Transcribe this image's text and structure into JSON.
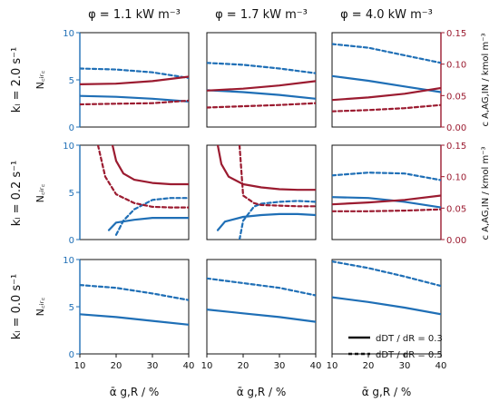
{
  "colors": {
    "blue": "#1f6fb6",
    "red": "#9b1b30",
    "black": "#111111"
  },
  "columns": [
    {
      "label": "φ = 1.1 kW m⁻³"
    },
    {
      "label": "φ = 1.7 kW m⁻³"
    },
    {
      "label": "φ = 4.0 kW m⁻³"
    }
  ],
  "rows": [
    {
      "label": "kₗ = 2.0 s⁻¹"
    },
    {
      "label": "kₗ = 0.2 s⁻¹"
    },
    {
      "label": "kₗ = 0.0 s⁻¹"
    }
  ],
  "y_label_left": "N꜀ᵢᵣ꜀",
  "y_label_right": "c A,AG,IN / kmol m⁻³",
  "x_label": "ᾱ g,R / %",
  "legend": [
    {
      "style": "solid",
      "label": "dDT / dR = 0.3"
    },
    {
      "style": "dashed",
      "label": "dDT / dR = 0.5"
    }
  ],
  "chart_data": {
    "type": "line",
    "grid": false,
    "x_axis": {
      "label": "ᾱ_g,R / %",
      "range": [
        10,
        40
      ],
      "ticks": [
        10,
        20,
        30,
        40
      ]
    },
    "y_axis_left": {
      "label": "N_circ",
      "range": [
        0,
        10
      ],
      "ticks": [
        0,
        5,
        10
      ],
      "color": "#1f6fb6"
    },
    "y_axis_right": {
      "label": "c_A,AG,IN / kmol m⁻³",
      "range": [
        0,
        0.15
      ],
      "ticks": [
        0.0,
        0.05,
        0.1,
        0.15
      ],
      "color": "#9b1b30"
    },
    "legend_placement": "bottom-right panel",
    "panels": [
      {
        "row": 0,
        "col": 0,
        "series": [
          {
            "axis": "left",
            "style": "solid",
            "x": [
              10,
              20,
              30,
              40
            ],
            "y": [
              3.3,
              3.2,
              3.0,
              2.7
            ]
          },
          {
            "axis": "left",
            "style": "dashed",
            "x": [
              10,
              20,
              30,
              40
            ],
            "y": [
              6.2,
              6.1,
              5.8,
              5.2
            ]
          },
          {
            "axis": "right",
            "style": "solid",
            "x": [
              10,
              20,
              30,
              40
            ],
            "y": [
              0.068,
              0.069,
              0.073,
              0.08
            ]
          },
          {
            "axis": "right",
            "style": "dashed",
            "x": [
              10,
              20,
              30,
              40
            ],
            "y": [
              0.036,
              0.037,
              0.038,
              0.042
            ]
          }
        ]
      },
      {
        "row": 0,
        "col": 1,
        "series": [
          {
            "axis": "left",
            "style": "solid",
            "x": [
              10,
              20,
              30,
              40
            ],
            "y": [
              3.9,
              3.7,
              3.4,
              3.0
            ]
          },
          {
            "axis": "left",
            "style": "dashed",
            "x": [
              10,
              20,
              30,
              40
            ],
            "y": [
              6.8,
              6.6,
              6.2,
              5.7
            ]
          },
          {
            "axis": "right",
            "style": "solid",
            "x": [
              10,
              20,
              30,
              40
            ],
            "y": [
              0.058,
              0.061,
              0.066,
              0.073
            ]
          },
          {
            "axis": "right",
            "style": "dashed",
            "x": [
              10,
              20,
              30,
              40
            ],
            "y": [
              0.031,
              0.033,
              0.035,
              0.038
            ]
          }
        ]
      },
      {
        "row": 0,
        "col": 2,
        "series": [
          {
            "axis": "left",
            "style": "solid",
            "x": [
              10,
              20,
              30,
              40
            ],
            "y": [
              5.4,
              4.9,
              4.3,
              3.7
            ]
          },
          {
            "axis": "left",
            "style": "dashed",
            "x": [
              10,
              20,
              30,
              40
            ],
            "y": [
              8.8,
              8.4,
              7.6,
              6.8
            ]
          },
          {
            "axis": "right",
            "style": "solid",
            "x": [
              10,
              20,
              30,
              40
            ],
            "y": [
              0.043,
              0.047,
              0.053,
              0.062
            ]
          },
          {
            "axis": "right",
            "style": "dashed",
            "x": [
              10,
              20,
              30,
              40
            ],
            "y": [
              0.025,
              0.027,
              0.03,
              0.035
            ]
          }
        ]
      },
      {
        "row": 1,
        "col": 0,
        "series": [
          {
            "axis": "left",
            "style": "solid",
            "x": [
              18,
              20,
              25,
              30,
              35,
              40
            ],
            "y": [
              1.0,
              1.8,
              2.1,
              2.3,
              2.3,
              2.3
            ]
          },
          {
            "axis": "left",
            "style": "dashed",
            "x": [
              20,
              22,
              25,
              30,
              35,
              40
            ],
            "y": [
              0.5,
              2.0,
              3.2,
              4.2,
              4.4,
              4.4
            ]
          },
          {
            "axis": "right",
            "style": "solid",
            "x": [
              19,
              20,
              22,
              25,
              30,
              35,
              40
            ],
            "y": [
              0.15,
              0.125,
              0.105,
              0.095,
              0.09,
              0.088,
              0.088
            ]
          },
          {
            "axis": "right",
            "style": "dashed",
            "x": [
              15,
              17,
              20,
              25,
              30,
              35,
              40
            ],
            "y": [
              0.15,
              0.1,
              0.072,
              0.058,
              0.052,
              0.051,
              0.051
            ]
          }
        ]
      },
      {
        "row": 1,
        "col": 1,
        "series": [
          {
            "axis": "left",
            "style": "solid",
            "x": [
              13,
              15,
              20,
              25,
              30,
              35,
              40
            ],
            "y": [
              1.0,
              1.9,
              2.4,
              2.6,
              2.7,
              2.7,
              2.6
            ]
          },
          {
            "axis": "left",
            "style": "dashed",
            "x": [
              19,
              20,
              23,
              25,
              30,
              35,
              40
            ],
            "y": [
              0.0,
              2.0,
              3.5,
              3.8,
              4.0,
              4.1,
              4.0
            ]
          },
          {
            "axis": "right",
            "style": "solid",
            "x": [
              13,
              14,
              16,
              20,
              25,
              30,
              35,
              40
            ],
            "y": [
              0.15,
              0.12,
              0.1,
              0.088,
              0.083,
              0.08,
              0.079,
              0.079
            ]
          },
          {
            "axis": "right",
            "style": "dashed",
            "x": [
              19,
              20,
              23,
              25,
              30,
              35,
              40
            ],
            "y": [
              0.15,
              0.07,
              0.058,
              0.055,
              0.054,
              0.053,
              0.053
            ]
          }
        ]
      },
      {
        "row": 1,
        "col": 2,
        "series": [
          {
            "axis": "left",
            "style": "solid",
            "x": [
              10,
              20,
              30,
              40
            ],
            "y": [
              4.5,
              4.4,
              4.0,
              3.4
            ]
          },
          {
            "axis": "left",
            "style": "dashed",
            "x": [
              10,
              20,
              30,
              40
            ],
            "y": [
              6.8,
              7.1,
              7.0,
              6.3
            ]
          },
          {
            "axis": "right",
            "style": "solid",
            "x": [
              10,
              20,
              30,
              40
            ],
            "y": [
              0.056,
              0.059,
              0.063,
              0.07
            ]
          },
          {
            "axis": "right",
            "style": "dashed",
            "x": [
              10,
              20,
              30,
              40
            ],
            "y": [
              0.045,
              0.045,
              0.046,
              0.048
            ]
          }
        ]
      },
      {
        "row": 2,
        "col": 0,
        "series": [
          {
            "axis": "left",
            "style": "solid",
            "x": [
              10,
              20,
              30,
              40
            ],
            "y": [
              4.2,
              3.9,
              3.5,
              3.1
            ]
          },
          {
            "axis": "left",
            "style": "dashed",
            "x": [
              10,
              20,
              30,
              40
            ],
            "y": [
              7.3,
              7.0,
              6.4,
              5.7
            ]
          }
        ]
      },
      {
        "row": 2,
        "col": 1,
        "series": [
          {
            "axis": "left",
            "style": "solid",
            "x": [
              10,
              20,
              30,
              40
            ],
            "y": [
              4.7,
              4.3,
              3.9,
              3.4
            ]
          },
          {
            "axis": "left",
            "style": "dashed",
            "x": [
              10,
              20,
              30,
              40
            ],
            "y": [
              8.0,
              7.5,
              7.0,
              6.2
            ]
          }
        ]
      },
      {
        "row": 2,
        "col": 2,
        "series": [
          {
            "axis": "left",
            "style": "solid",
            "x": [
              10,
              20,
              30,
              40
            ],
            "y": [
              6.0,
              5.5,
              4.9,
              4.2
            ]
          },
          {
            "axis": "left",
            "style": "dashed",
            "x": [
              10,
              20,
              30,
              40
            ],
            "y": [
              9.8,
              9.1,
              8.2,
              7.2
            ]
          }
        ]
      }
    ]
  }
}
